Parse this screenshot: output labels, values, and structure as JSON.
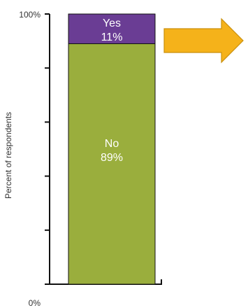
{
  "chart_data": {
    "type": "bar",
    "stacked": true,
    "categories": [
      ""
    ],
    "series": [
      {
        "name": "No",
        "values": [
          89
        ],
        "color": "#9aae3d"
      },
      {
        "name": "Yes",
        "values": [
          11
        ],
        "color": "#6a3d94"
      }
    ],
    "ylabel": "Percent of respondents",
    "ylim": [
      0,
      100
    ],
    "y_tick_labels": {
      "top": "100%",
      "bottom": "0%"
    },
    "y_minor_ticks": 5,
    "grid": false,
    "legend": "none",
    "segment_labels": [
      {
        "name": "No",
        "value_text": "89%"
      },
      {
        "name": "Yes",
        "value_text": "11%"
      }
    ],
    "annotation": {
      "shape": "arrow-right",
      "color": "#f5b21a",
      "stroke": "#c9900e"
    },
    "axis_color": "#111111"
  }
}
